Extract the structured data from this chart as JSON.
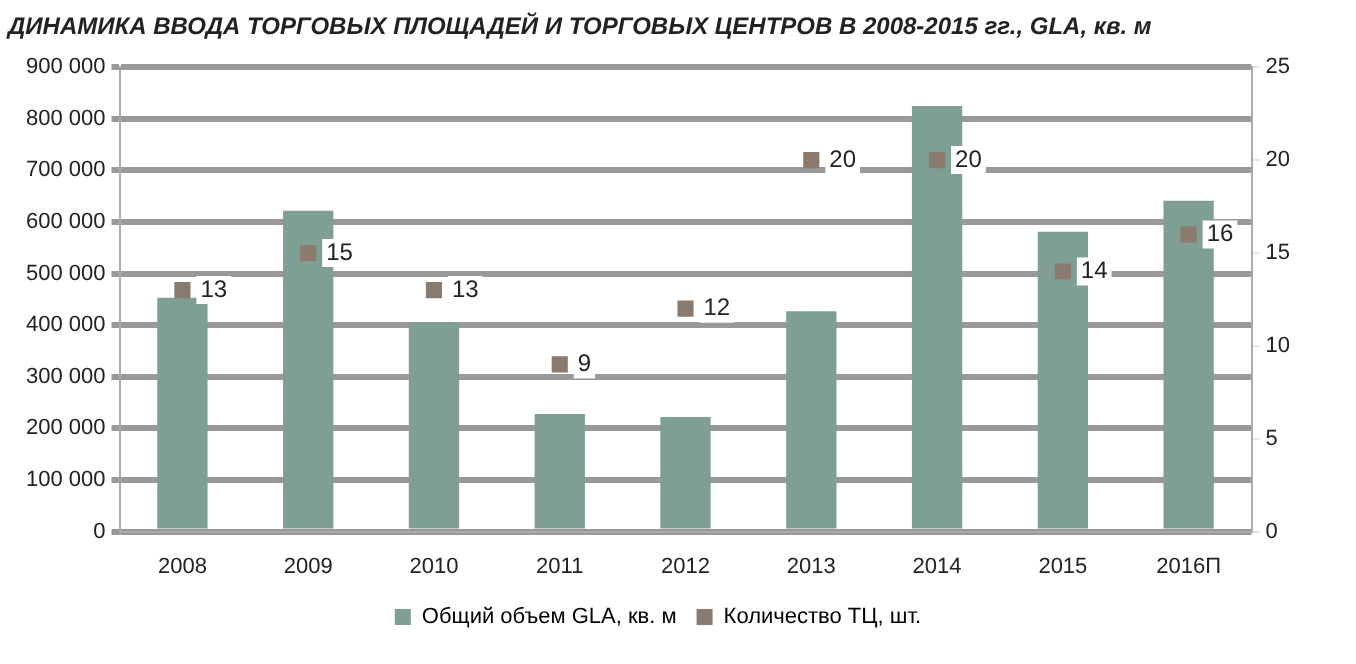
{
  "chart_data": {
    "type": "bar",
    "title": "ДИНАМИКА ВВОДА ТОРГОВЫХ ПЛОЩАДЕЙ И ТОРГОВЫХ ЦЕНТРОВ В 2008-2015 гг., GLA, кв. м",
    "categories": [
      "2008",
      "2009",
      "2010",
      "2011",
      "2012",
      "2013",
      "2014",
      "2015",
      "2016П"
    ],
    "series": [
      {
        "name": "Общий объем GLA, кв. м",
        "color": "#7f9f95",
        "values": [
          453000,
          622000,
          405000,
          228000,
          222000,
          427000,
          825000,
          581000,
          641000
        ]
      },
      {
        "name": "Количество ТЦ, шт.",
        "type": "scatter",
        "axis": "y2",
        "color": "#8b7a6e",
        "marker": "square",
        "data_labels": true,
        "values": [
          13,
          15,
          13,
          9,
          12,
          20,
          20,
          14,
          16
        ]
      }
    ],
    "ylim": [
      0,
      900000
    ],
    "yticks": [
      0,
      100000,
      200000,
      300000,
      400000,
      500000,
      600000,
      700000,
      800000,
      900000
    ],
    "y2lim": [
      0,
      25
    ],
    "y2ticks": [
      0,
      5,
      10,
      15,
      20,
      25
    ],
    "grid": "y",
    "legend": "bottom"
  }
}
